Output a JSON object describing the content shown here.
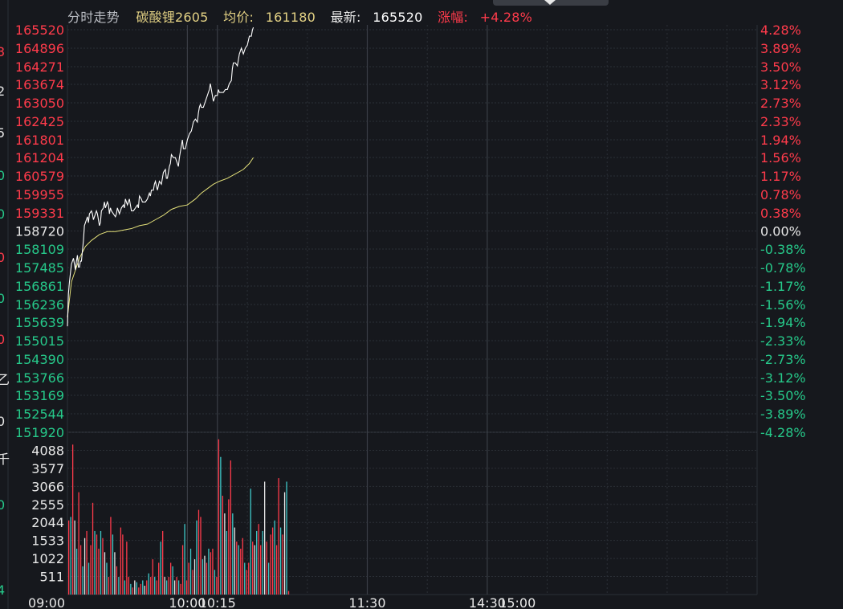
{
  "header": {
    "mode": "分时走势",
    "contract": "碳酸锂2605",
    "avg_label": "均价:",
    "avg_value": "161180",
    "last_label": "最新:",
    "last_value": "165520",
    "chg_label": "涨幅:",
    "chg_value": "+4.28%"
  },
  "colors": {
    "background": "#16181d",
    "grid": "#2b2f36",
    "up": "#ff3b4b",
    "down": "#26c98a",
    "neutral": "#e8e8e8",
    "price_line": "#ffffff",
    "avg_line": "#e3e07a",
    "header_gray": "#b9bcc2",
    "header_gold": "#e3d184"
  },
  "left_edge_glyphs": [
    "3",
    "2",
    "5",
    "0",
    "0",
    "0",
    "0",
    "0",
    "乙",
    "0",
    "千",
    "0",
    "4"
  ],
  "chart_data": {
    "type": "line",
    "title": "碳酸锂2605 分时走势",
    "prev_settle": 158720,
    "price_axis": {
      "min": 151920,
      "max": 165520,
      "ticks": [
        165520,
        164896,
        164271,
        163674,
        163050,
        162425,
        161801,
        161204,
        160579,
        159955,
        159331,
        158720,
        158109,
        157485,
        156861,
        156236,
        155639,
        155015,
        154390,
        153766,
        153169,
        152544,
        151920
      ]
    },
    "pct_axis": {
      "ticks": [
        "4.28%",
        "3.89%",
        "3.50%",
        "3.12%",
        "2.73%",
        "2.33%",
        "1.94%",
        "1.56%",
        "1.17%",
        "0.78%",
        "0.38%",
        "0.00%",
        "-0.38%",
        "-0.78%",
        "-1.17%",
        "-1.56%",
        "-1.94%",
        "-2.33%",
        "-2.73%",
        "-3.12%",
        "-3.50%",
        "-3.89%",
        "-4.28%"
      ]
    },
    "time_axis": {
      "labels": [
        "09:00",
        "10:00",
        "10:15",
        "11:30",
        "14:30",
        "15:00"
      ],
      "label_minutes": [
        0,
        60,
        75,
        150,
        210,
        225
      ],
      "minor_minutes": [
        90,
        120,
        180,
        240,
        270,
        300,
        330
      ],
      "total_minutes": 345
    },
    "volume_axis": {
      "max": 4600,
      "ticks": [
        4088,
        3577,
        3066,
        2555,
        2044,
        1533,
        1022,
        511
      ]
    },
    "series": [
      {
        "name": "最新",
        "points": [
          [
            0,
            155500
          ],
          [
            0.5,
            156600
          ],
          [
            1,
            157000
          ],
          [
            1.5,
            157300
          ],
          [
            2,
            157600
          ],
          [
            2.5,
            157700
          ],
          [
            3,
            157800
          ],
          [
            3.5,
            157600
          ],
          [
            4,
            157400
          ],
          [
            4.5,
            157700
          ],
          [
            5,
            157900
          ],
          [
            5.5,
            157500
          ],
          [
            6,
            157500
          ],
          [
            6.5,
            157700
          ],
          [
            7,
            157700
          ],
          [
            8,
            158400
          ],
          [
            8.5,
            158900
          ],
          [
            9,
            159000
          ],
          [
            10,
            159200
          ],
          [
            10.5,
            159000
          ],
          [
            11,
            159300
          ],
          [
            12,
            159400
          ],
          [
            12.5,
            159300
          ],
          [
            13,
            159100
          ],
          [
            13.5,
            159200
          ],
          [
            14,
            159300
          ],
          [
            14.5,
            159400
          ],
          [
            15,
            159300
          ],
          [
            16,
            158900
          ],
          [
            16.5,
            159000
          ],
          [
            17,
            159400
          ],
          [
            18,
            159500
          ],
          [
            18.5,
            159700
          ],
          [
            19,
            159500
          ],
          [
            20,
            159700
          ],
          [
            20.5,
            159600
          ],
          [
            21,
            159300
          ],
          [
            21.5,
            159500
          ],
          [
            22,
            159400
          ],
          [
            23,
            159300
          ],
          [
            24,
            159200
          ],
          [
            24.5,
            159300
          ],
          [
            25,
            159500
          ],
          [
            26,
            159300
          ],
          [
            27,
            159500
          ],
          [
            28,
            159600
          ],
          [
            28.5,
            159500
          ],
          [
            29,
            159800
          ],
          [
            30,
            159600
          ],
          [
            31,
            159800
          ],
          [
            32,
            159400
          ],
          [
            33,
            159400
          ],
          [
            34,
            159500
          ],
          [
            35,
            159600
          ],
          [
            35.5,
            159500
          ],
          [
            36,
            159900
          ],
          [
            37,
            159800
          ],
          [
            37.5,
            159700
          ],
          [
            38,
            159700
          ],
          [
            39,
            159700
          ],
          [
            40,
            159800
          ],
          [
            41,
            160000
          ],
          [
            41.5,
            159900
          ],
          [
            42,
            160100
          ],
          [
            43,
            160100
          ],
          [
            43.5,
            160300
          ],
          [
            44,
            160400
          ],
          [
            45,
            160100
          ],
          [
            46,
            160400
          ],
          [
            47,
            160300
          ],
          [
            48,
            160700
          ],
          [
            49,
            160800
          ],
          [
            49.5,
            160500
          ],
          [
            50,
            160500
          ],
          [
            51,
            160900
          ],
          [
            51.5,
            161000
          ],
          [
            52,
            161300
          ],
          [
            53,
            161200
          ],
          [
            54,
            161200
          ],
          [
            55,
            161000
          ],
          [
            55.5,
            160900
          ],
          [
            56,
            161200
          ],
          [
            57,
            161600
          ],
          [
            57.5,
            161800
          ],
          [
            58,
            161500
          ],
          [
            59,
            161500
          ],
          [
            60,
            161800
          ],
          [
            61,
            162000
          ],
          [
            62,
            162100
          ],
          [
            63,
            162400
          ],
          [
            64,
            162500
          ],
          [
            65,
            162400
          ],
          [
            65.5,
            162700
          ],
          [
            66,
            162900
          ],
          [
            66.5,
            163000
          ],
          [
            67,
            162900
          ],
          [
            68,
            162900
          ],
          [
            69,
            163100
          ],
          [
            70,
            163300
          ],
          [
            71,
            163500
          ],
          [
            71.5,
            163700
          ],
          [
            72,
            163500
          ],
          [
            73,
            163100
          ],
          [
            73.5,
            163200
          ],
          [
            74,
            163300
          ],
          [
            75,
            163300
          ],
          [
            75.5,
            163500
          ],
          [
            76,
            163400
          ],
          [
            77,
            163400
          ],
          [
            78,
            163400
          ],
          [
            79,
            163500
          ],
          [
            80,
            163500
          ],
          [
            81,
            163700
          ],
          [
            82,
            163800
          ],
          [
            82.5,
            164200
          ],
          [
            83,
            164400
          ],
          [
            84,
            164400
          ],
          [
            85,
            164300
          ],
          [
            86,
            164700
          ],
          [
            87,
            164900
          ],
          [
            88,
            164700
          ],
          [
            89,
            164900
          ],
          [
            90,
            165000
          ],
          [
            91,
            165300
          ],
          [
            92,
            165300
          ],
          [
            92.5,
            165500
          ],
          [
            93,
            165600
          ]
        ]
      },
      {
        "name": "均价",
        "points": [
          [
            0,
            155800
          ],
          [
            2,
            157000
          ],
          [
            4,
            157400
          ],
          [
            6,
            157800
          ],
          [
            9,
            158200
          ],
          [
            12,
            158400
          ],
          [
            16,
            158600
          ],
          [
            20,
            158700
          ],
          [
            24,
            158700
          ],
          [
            28,
            158750
          ],
          [
            32,
            158800
          ],
          [
            36,
            158900
          ],
          [
            40,
            158950
          ],
          [
            44,
            159100
          ],
          [
            48,
            159250
          ],
          [
            52,
            159450
          ],
          [
            56,
            159550
          ],
          [
            60,
            159600
          ],
          [
            64,
            159800
          ],
          [
            67,
            160000
          ],
          [
            70,
            160150
          ],
          [
            73,
            160300
          ],
          [
            76,
            160400
          ],
          [
            80,
            160500
          ],
          [
            84,
            160650
          ],
          [
            88,
            160800
          ],
          [
            91,
            161000
          ],
          [
            93,
            161200
          ]
        ]
      }
    ],
    "volume": [
      [
        0,
        2100
      ],
      [
        1,
        2200
      ],
      [
        2,
        4250
      ],
      [
        3,
        2100
      ],
      [
        4,
        1300
      ],
      [
        5,
        2900
      ],
      [
        6,
        1400
      ],
      [
        7,
        800
      ],
      [
        8,
        1600
      ],
      [
        9,
        1800
      ],
      [
        10,
        900
      ],
      [
        11,
        1400
      ],
      [
        12,
        2600
      ],
      [
        13,
        1800
      ],
      [
        14,
        1700
      ],
      [
        15,
        1300
      ],
      [
        16,
        1800
      ],
      [
        17,
        1600
      ],
      [
        18,
        1200
      ],
      [
        19,
        900
      ],
      [
        20,
        500
      ],
      [
        21,
        2200
      ],
      [
        22,
        1700
      ],
      [
        23,
        1200
      ],
      [
        24,
        800
      ],
      [
        25,
        500
      ],
      [
        26,
        1900
      ],
      [
        27,
        1700
      ],
      [
        28,
        400
      ],
      [
        29,
        1500
      ],
      [
        30,
        500
      ],
      [
        31,
        300
      ],
      [
        32,
        200
      ],
      [
        33,
        400
      ],
      [
        34,
        350
      ],
      [
        35,
        200
      ],
      [
        36,
        300
      ],
      [
        37,
        400
      ],
      [
        38,
        250
      ],
      [
        39,
        400
      ],
      [
        40,
        600
      ],
      [
        41,
        500
      ],
      [
        42,
        1000
      ],
      [
        43,
        500
      ],
      [
        44,
        400
      ],
      [
        45,
        900
      ],
      [
        46,
        1500
      ],
      [
        47,
        1800
      ],
      [
        48,
        500
      ],
      [
        49,
        400
      ],
      [
        50,
        500
      ],
      [
        51,
        900
      ],
      [
        52,
        800
      ],
      [
        53,
        400
      ],
      [
        54,
        500
      ],
      [
        55,
        400
      ],
      [
        56,
        300
      ],
      [
        57,
        1400
      ],
      [
        58,
        2000
      ],
      [
        59,
        400
      ],
      [
        60,
        900
      ],
      [
        61,
        1300
      ],
      [
        62,
        700
      ],
      [
        63,
        1000
      ],
      [
        64,
        2100
      ],
      [
        65,
        2400
      ],
      [
        66,
        2200
      ],
      [
        67,
        1000
      ],
      [
        68,
        1100
      ],
      [
        69,
        900
      ],
      [
        70,
        1300
      ],
      [
        71,
        1200
      ],
      [
        72,
        1300
      ],
      [
        73,
        700
      ],
      [
        74,
        500
      ],
      [
        75,
        4400
      ],
      [
        76,
        3900
      ],
      [
        77,
        2800
      ],
      [
        78,
        2300
      ],
      [
        79,
        1800
      ],
      [
        80,
        2700
      ],
      [
        81,
        3800
      ],
      [
        82,
        2300
      ],
      [
        83,
        1900
      ],
      [
        84,
        1500
      ],
      [
        85,
        1400
      ],
      [
        86,
        1300
      ],
      [
        87,
        1600
      ],
      [
        88,
        900
      ],
      [
        89,
        700
      ],
      [
        90,
        900
      ],
      [
        91,
        3000
      ],
      [
        92,
        1500
      ],
      [
        93,
        1400
      ],
      [
        94,
        1800
      ],
      [
        95,
        2000
      ],
      [
        96,
        1400
      ],
      [
        97,
        1800
      ],
      [
        98,
        3200
      ],
      [
        99,
        1500
      ],
      [
        100,
        900
      ],
      [
        101,
        1700
      ],
      [
        102,
        1900
      ],
      [
        103,
        2100
      ],
      [
        104,
        1400
      ],
      [
        105,
        3300
      ],
      [
        106,
        1900
      ],
      [
        107,
        1700
      ],
      [
        108,
        2900
      ],
      [
        109,
        3200
      ],
      [
        110,
        100
      ]
    ]
  }
}
